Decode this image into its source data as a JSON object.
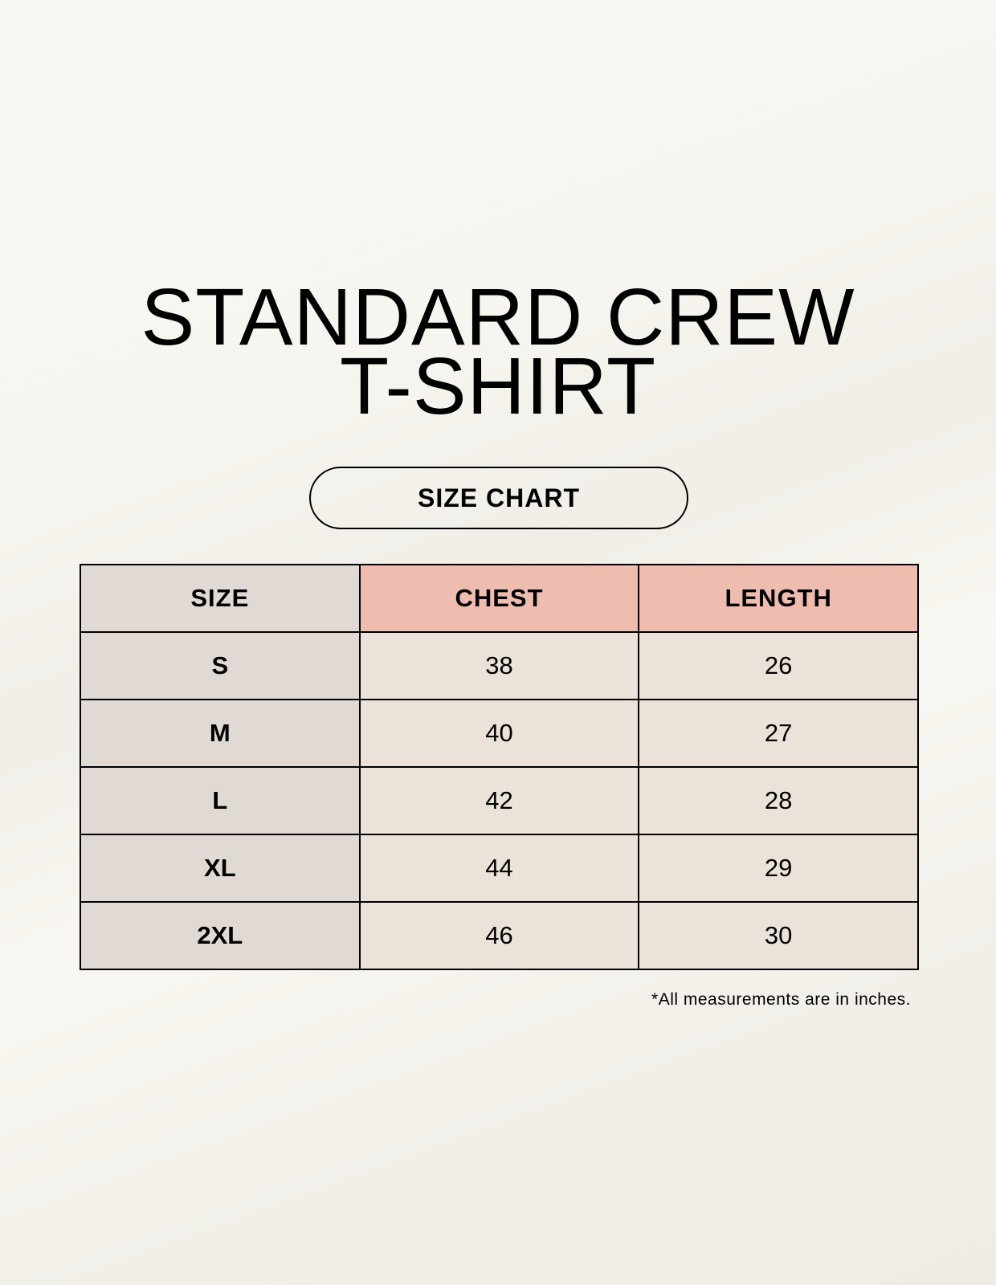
{
  "title": {
    "line1": "STANDARD CREW",
    "line2": "T-SHIRT"
  },
  "subtitle": "SIZE CHART",
  "table": {
    "headers": [
      "SIZE",
      "CHEST",
      "LENGTH"
    ],
    "rows": [
      [
        "S",
        "38",
        "26"
      ],
      [
        "M",
        "40",
        "27"
      ],
      [
        "L",
        "42",
        "28"
      ],
      [
        "XL",
        "44",
        "29"
      ],
      [
        "2XL",
        "46",
        "30"
      ]
    ]
  },
  "note": "*All measurements are in inches.",
  "colors": {
    "size_column": "#e0d9d4",
    "header_accent": "#efbdb0",
    "cell": "#ebe3d9",
    "background": "#f8f6f0"
  }
}
